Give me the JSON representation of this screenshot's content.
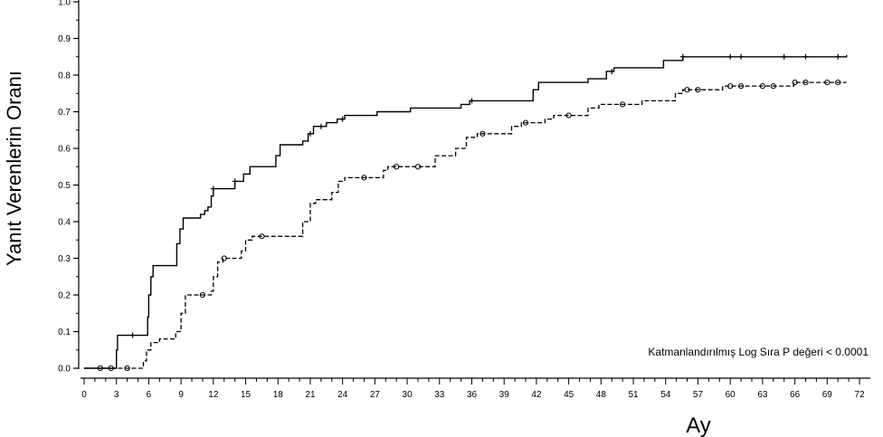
{
  "chart_data": {
    "type": "line",
    "step": true,
    "xlabel": "Ay",
    "ylabel": "Yanıt Verenlerin Oranı",
    "xlim": [
      0,
      72
    ],
    "ylim": [
      0,
      1.0
    ],
    "x_ticks": [
      0,
      3,
      6,
      9,
      12,
      15,
      18,
      21,
      24,
      27,
      30,
      33,
      36,
      39,
      42,
      45,
      48,
      51,
      54,
      57,
      60,
      63,
      66,
      69,
      72
    ],
    "x_tick_labels": [
      "0",
      "3",
      "6",
      "9",
      "12",
      "15",
      "18",
      "21",
      "24",
      "27",
      "30",
      "33",
      "36",
      "39",
      "42",
      "45",
      "48",
      "51",
      "54",
      "57",
      "60",
      "63",
      "66",
      "69",
      "72"
    ],
    "y_ticks": [
      0.0,
      0.1,
      0.2,
      0.3,
      0.4,
      0.5,
      0.6,
      0.7,
      0.8,
      0.9,
      1.0
    ],
    "y_tick_labels": [
      "0.0",
      "0.1",
      "0.2",
      "0.3",
      "0.4",
      "0.5",
      "0.6",
      "0.7",
      "0.8",
      "0.9",
      "1.0"
    ],
    "annotation": "Katmanlandırılmış Log Sıra P değeri < 0.0001",
    "grid": false,
    "series": [
      {
        "style": "solid",
        "color": "#000000",
        "marker": "+",
        "points": [
          [
            0,
            0.0
          ],
          [
            2.9,
            0.0
          ],
          [
            3.0,
            0.05
          ],
          [
            3.1,
            0.09
          ],
          [
            5.8,
            0.09
          ],
          [
            5.9,
            0.14
          ],
          [
            6.0,
            0.2
          ],
          [
            6.2,
            0.25
          ],
          [
            6.4,
            0.28
          ],
          [
            8.3,
            0.28
          ],
          [
            8.6,
            0.34
          ],
          [
            8.9,
            0.38
          ],
          [
            9.2,
            0.41
          ],
          [
            10.5,
            0.41
          ],
          [
            10.8,
            0.42
          ],
          [
            11.2,
            0.43
          ],
          [
            11.5,
            0.44
          ],
          [
            11.8,
            0.47
          ],
          [
            12.0,
            0.49
          ],
          [
            13.5,
            0.49
          ],
          [
            14.0,
            0.51
          ],
          [
            14.8,
            0.53
          ],
          [
            15.4,
            0.55
          ],
          [
            17.2,
            0.55
          ],
          [
            17.8,
            0.58
          ],
          [
            18.2,
            0.61
          ],
          [
            19.8,
            0.61
          ],
          [
            20.3,
            0.62
          ],
          [
            20.8,
            0.64
          ],
          [
            21.3,
            0.66
          ],
          [
            21.8,
            0.66
          ],
          [
            22.5,
            0.67
          ],
          [
            23.5,
            0.68
          ],
          [
            24.2,
            0.69
          ],
          [
            26.5,
            0.69
          ],
          [
            27.2,
            0.7
          ],
          [
            29.8,
            0.7
          ],
          [
            30.3,
            0.71
          ],
          [
            34.2,
            0.71
          ],
          [
            35.0,
            0.72
          ],
          [
            35.8,
            0.73
          ],
          [
            41.2,
            0.73
          ],
          [
            41.7,
            0.76
          ],
          [
            42.2,
            0.78
          ],
          [
            44.8,
            0.78
          ],
          [
            46.8,
            0.79
          ],
          [
            48.5,
            0.81
          ],
          [
            49.2,
            0.82
          ],
          [
            53.2,
            0.82
          ],
          [
            53.8,
            0.84
          ],
          [
            55.0,
            0.84
          ],
          [
            55.6,
            0.85
          ],
          [
            66.5,
            0.85
          ],
          [
            70.8,
            0.855
          ]
        ],
        "censor_x": [
          4.5,
          12.0,
          14.0,
          21.0,
          22.0,
          24.0,
          36.0,
          49.0,
          55.6,
          60.0,
          61.0,
          65.0,
          67.0,
          70.0
        ]
      },
      {
        "style": "dashed",
        "color": "#000000",
        "marker": "o",
        "points": [
          [
            0,
            0.0
          ],
          [
            5.2,
            0.0
          ],
          [
            5.5,
            0.02
          ],
          [
            5.8,
            0.05
          ],
          [
            6.2,
            0.07
          ],
          [
            7.0,
            0.08
          ],
          [
            8.0,
            0.08
          ],
          [
            8.5,
            0.1
          ],
          [
            9.0,
            0.15
          ],
          [
            9.4,
            0.2
          ],
          [
            11.3,
            0.2
          ],
          [
            11.8,
            0.21
          ],
          [
            12.0,
            0.25
          ],
          [
            12.4,
            0.29
          ],
          [
            12.9,
            0.3
          ],
          [
            13.8,
            0.3
          ],
          [
            14.6,
            0.32
          ],
          [
            15.0,
            0.35
          ],
          [
            15.6,
            0.36
          ],
          [
            19.5,
            0.36
          ],
          [
            20.3,
            0.4
          ],
          [
            21.0,
            0.45
          ],
          [
            21.5,
            0.46
          ],
          [
            22.7,
            0.46
          ],
          [
            23.0,
            0.48
          ],
          [
            23.6,
            0.51
          ],
          [
            24.2,
            0.52
          ],
          [
            27.3,
            0.52
          ],
          [
            27.8,
            0.54
          ],
          [
            28.2,
            0.55
          ],
          [
            31.8,
            0.55
          ],
          [
            32.6,
            0.58
          ],
          [
            33.6,
            0.58
          ],
          [
            34.5,
            0.6
          ],
          [
            35.5,
            0.63
          ],
          [
            36.5,
            0.64
          ],
          [
            39.0,
            0.64
          ],
          [
            39.7,
            0.66
          ],
          [
            40.6,
            0.67
          ],
          [
            42.2,
            0.67
          ],
          [
            42.8,
            0.68
          ],
          [
            43.6,
            0.69
          ],
          [
            46.0,
            0.69
          ],
          [
            46.8,
            0.71
          ],
          [
            47.8,
            0.72
          ],
          [
            50.8,
            0.72
          ],
          [
            51.8,
            0.73
          ],
          [
            54.3,
            0.73
          ],
          [
            54.9,
            0.75
          ],
          [
            55.6,
            0.76
          ],
          [
            56.6,
            0.76
          ],
          [
            58.4,
            0.76
          ],
          [
            59.3,
            0.77
          ],
          [
            65.3,
            0.77
          ],
          [
            65.9,
            0.78
          ],
          [
            70.8,
            0.78
          ]
        ],
        "censor_x": [
          1.5,
          2.5,
          4.0,
          11.0,
          13.0,
          16.5,
          26.0,
          29.0,
          31.0,
          37.0,
          41.0,
          45.0,
          50.0,
          56.0,
          57.0,
          60.0,
          61.0,
          63.0,
          64.0,
          66.0,
          67.0,
          69.0,
          70.0
        ]
      }
    ]
  }
}
